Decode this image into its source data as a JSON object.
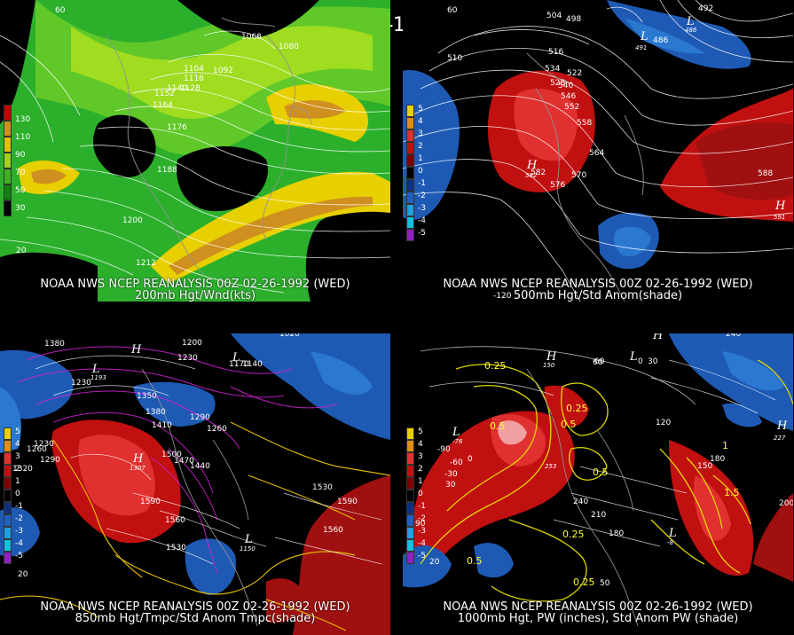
{
  "title": "00Z 02-26-1992 (WED)",
  "panels": [
    {
      "id": "200mb",
      "caption_line1": "NOAA NWS NCEP REANALYSIS 00Z 02-26-1992 (WED)",
      "caption_line2": "200mb Hgt/Wnd(kts)",
      "legend_values": [
        "130",
        "110",
        "90",
        "70",
        "50",
        "30"
      ],
      "legend_colors": [
        "#c80000",
        "#d09020",
        "#e0c000",
        "#a0d020",
        "#40b020",
        "#108010"
      ],
      "contour_labels": [
        "1068",
        "1080",
        "1092",
        "1104",
        "1116",
        "1128",
        "1140",
        "1152",
        "1164",
        "1176",
        "1188",
        "1200",
        "1212"
      ],
      "edge_labels": [
        "60",
        "20"
      ]
    },
    {
      "id": "500mb",
      "caption_line1": "NOAA NWS NCEP REANALYSIS 00Z 02-26-1992 (WED)",
      "caption_line2": "500mb Hgt/Std Anom(shade)",
      "legend_values": [
        "5",
        "4",
        "3",
        "2",
        "1",
        "0",
        "-1",
        "-2",
        "-3",
        "-4",
        "-5"
      ],
      "legend_colors": [
        "#e8d000",
        "#e09010",
        "#e03030",
        "#c01010",
        "#800000",
        "#000000",
        "#103080",
        "#2060c0",
        "#20a0e0",
        "#10c0e0",
        "#9020c0"
      ],
      "contour_labels": [
        "504",
        "498",
        "492",
        "486",
        "510",
        "516",
        "522",
        "528",
        "534",
        "540",
        "546",
        "552",
        "558",
        "564",
        "570",
        "576",
        "582",
        "588"
      ],
      "hl_labels": [
        "L",
        "L",
        "H",
        "H"
      ],
      "small_labels": [
        "486",
        "491",
        "582",
        "591"
      ],
      "edge_labels": [
        "60",
        "-120"
      ]
    },
    {
      "id": "850mb",
      "caption_line1": "NOAA NWS NCEP REANALYSIS 00Z 02-26-1992 (WED)",
      "caption_line2": "850mb Hgt/Tmpc/Std Anom Tmpc(shade)",
      "legend_values": [
        "5",
        "4",
        "3",
        "2",
        "1",
        "0",
        "-1",
        "-2",
        "-3",
        "-4",
        "-5"
      ],
      "contour_labels": [
        "1380",
        "1230",
        "1200",
        "1230",
        "1170",
        "1140",
        "1020",
        "1350",
        "1380",
        "1410",
        "1290",
        "1260",
        "1260",
        "1230",
        "1320",
        "1290",
        "1500",
        "1470",
        "1440",
        "1590",
        "1560",
        "1530",
        "1590",
        "1530",
        "1560"
      ],
      "hl_labels": [
        "L",
        "H",
        "L",
        "H",
        "L"
      ],
      "small_labels": [
        "1193",
        "1307",
        "1150"
      ],
      "edge_labels": [
        "60",
        "20"
      ]
    },
    {
      "id": "1000mb",
      "caption_line1": "NOAA NWS NCEP REANALYSIS 00Z 02-26-1992 (WED)",
      "caption_line2": "1000mb Hgt, PW (inches), Std Anom PW (shade)",
      "legend_values": [
        "5",
        "4",
        "3",
        "2",
        "1",
        "0",
        "-1",
        "-2",
        "-3",
        "-4",
        "-5"
      ],
      "contour_labels": [
        "240",
        "60",
        "0",
        "30",
        "120",
        "150",
        "180",
        "210",
        "240",
        "180",
        "-90",
        "-60",
        "-30",
        "0",
        "30",
        "90",
        "50",
        "200"
      ],
      "pw_labels": [
        "0.25",
        "0.5",
        "0.25",
        "0.5",
        "0.5",
        "0.25",
        "0.25",
        "1.5",
        "1",
        "0.5"
      ],
      "hl_labels": [
        "H",
        "L",
        "L",
        "H",
        "L",
        "H"
      ],
      "small_labels": [
        "150",
        "-76",
        "253",
        "227",
        "-8"
      ],
      "edge_labels": [
        "60",
        "20"
      ]
    }
  ]
}
